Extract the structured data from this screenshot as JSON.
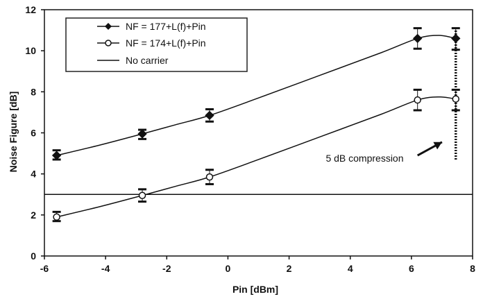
{
  "chart_data": {
    "type": "line",
    "title": "",
    "xlabel": "Pin [dBm]",
    "ylabel": "Noise Figure [dB]",
    "xlim": [
      -6,
      8
    ],
    "ylim": [
      0,
      12
    ],
    "xticks": [
      -6,
      -4,
      -2,
      0,
      2,
      4,
      6,
      8
    ],
    "yticks": [
      0,
      2,
      4,
      6,
      8,
      10,
      12
    ],
    "grid": false,
    "legend_position": "top-left",
    "series": [
      {
        "name": "NF = 177+L(f)+Pin",
        "marker": "filled-diamond",
        "color": "#111111",
        "x": [
          -5.6,
          -2.8,
          -0.6,
          6.2,
          7.45
        ],
        "y": [
          4.9,
          5.95,
          6.85,
          10.6,
          10.6
        ],
        "err_low": [
          4.7,
          5.7,
          6.55,
          10.1,
          10.05
        ],
        "err_high": [
          5.15,
          6.15,
          7.15,
          11.1,
          11.1
        ],
        "curve": [
          [
            -5.6,
            4.9
          ],
          [
            -4.2,
            5.4
          ],
          [
            -2.8,
            5.95
          ],
          [
            -1.7,
            6.4
          ],
          [
            -0.6,
            6.85
          ],
          [
            1.0,
            7.7
          ],
          [
            3.0,
            8.8
          ],
          [
            5.0,
            9.9
          ],
          [
            6.2,
            10.6
          ],
          [
            6.9,
            10.75
          ],
          [
            7.45,
            10.6
          ]
        ]
      },
      {
        "name": "NF = 174+L(f)+Pin",
        "marker": "open-circle",
        "color": "#111111",
        "x": [
          -5.6,
          -2.8,
          -0.6,
          6.2,
          7.45
        ],
        "y": [
          1.9,
          2.95,
          3.85,
          7.6,
          7.65
        ],
        "err_low": [
          1.7,
          2.65,
          3.5,
          7.1,
          7.1
        ],
        "err_high": [
          2.15,
          3.25,
          4.2,
          8.1,
          8.1
        ],
        "curve": [
          [
            -5.6,
            1.9
          ],
          [
            -4.2,
            2.4
          ],
          [
            -2.8,
            2.95
          ],
          [
            -1.7,
            3.4
          ],
          [
            -0.6,
            3.85
          ],
          [
            1.0,
            4.7
          ],
          [
            3.0,
            5.8
          ],
          [
            5.0,
            6.9
          ],
          [
            6.2,
            7.6
          ],
          [
            6.9,
            7.75
          ],
          [
            7.45,
            7.65
          ]
        ]
      },
      {
        "name": "No carrier",
        "marker": "none",
        "color": "#111111",
        "x": [
          -6,
          8
        ],
        "y": [
          3,
          3
        ]
      }
    ],
    "compression_line": {
      "x": 7.45,
      "y_range": [
        4.7,
        11.1
      ]
    },
    "annotations": [
      {
        "text": "5 dB compression",
        "x": 3.2,
        "y": 4.6,
        "arrow_from": [
          6.2,
          4.9
        ],
        "arrow_to": [
          7.0,
          5.55
        ]
      }
    ]
  }
}
